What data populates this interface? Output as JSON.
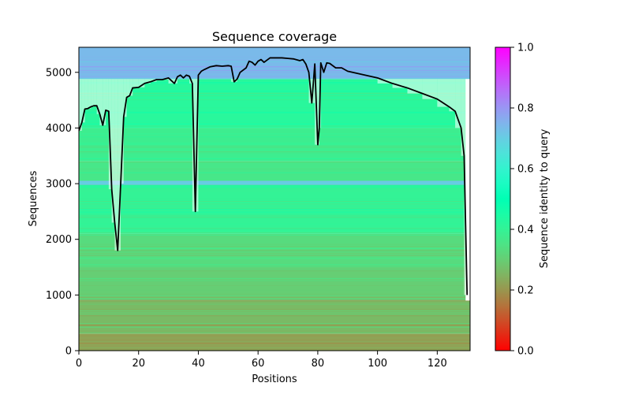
{
  "chart_data": {
    "type": "heatmap",
    "title": "Sequence coverage",
    "xlabel": "Positions",
    "ylabel": "Sequences",
    "xlim": [
      0,
      131
    ],
    "ylim": [
      0,
      5450
    ],
    "xticks": [
      0,
      20,
      40,
      60,
      80,
      100,
      120
    ],
    "yticks": [
      0,
      1000,
      2000,
      3000,
      4000,
      5000
    ],
    "colorbar": {
      "label": "Sequence identity to query",
      "ticks": [
        0.0,
        0.2,
        0.4,
        0.6,
        0.8,
        1.0
      ],
      "colormap": "rainbow_r",
      "range": [
        0.0,
        1.0
      ]
    },
    "identity_bands": [
      {
        "y0": 0,
        "y1": 300,
        "identity": 0.22
      },
      {
        "y0": 300,
        "y1": 900,
        "identity": 0.26
      },
      {
        "y0": 900,
        "y1": 1500,
        "identity": 0.3
      },
      {
        "y0": 1500,
        "y1": 2100,
        "identity": 0.33
      },
      {
        "y0": 2100,
        "y1": 2980,
        "identity": 0.4
      },
      {
        "y0": 2980,
        "y1": 3050,
        "identity": 0.72
      },
      {
        "y0": 3050,
        "y1": 3400,
        "identity": 0.36
      },
      {
        "y0": 3400,
        "y1": 4000,
        "identity": 0.38
      },
      {
        "y0": 4000,
        "y1": 4880,
        "identity": 0.42
      },
      {
        "y0": 4880,
        "y1": 5450,
        "identity": 0.74
      }
    ],
    "coverage_line": {
      "color": "#000000",
      "x": [
        0,
        1,
        2,
        3,
        4,
        5,
        6,
        7,
        8,
        9,
        10,
        11,
        12,
        13,
        14,
        15,
        16,
        17,
        18,
        20,
        22,
        24,
        26,
        28,
        30,
        32,
        33,
        34,
        35,
        36,
        37,
        38,
        39,
        40,
        41,
        42,
        44,
        46,
        48,
        50,
        51,
        52,
        53,
        54,
        56,
        57,
        58,
        59,
        60,
        61,
        62,
        64,
        66,
        68,
        70,
        72,
        74,
        75,
        76,
        77,
        78,
        79,
        80,
        80.5,
        81,
        82,
        83,
        84,
        86,
        88,
        90,
        95,
        100,
        105,
        110,
        115,
        120,
        124,
        126,
        128,
        129,
        130
      ],
      "y": [
        3950,
        4100,
        4340,
        4350,
        4380,
        4400,
        4400,
        4250,
        4050,
        4320,
        4300,
        2900,
        2300,
        1800,
        3000,
        4200,
        4550,
        4580,
        4720,
        4730,
        4800,
        4830,
        4870,
        4870,
        4900,
        4800,
        4920,
        4950,
        4900,
        4950,
        4930,
        4800,
        2500,
        4950,
        5020,
        5050,
        5100,
        5120,
        5110,
        5120,
        5110,
        4830,
        4880,
        5000,
        5080,
        5200,
        5180,
        5130,
        5200,
        5230,
        5180,
        5260,
        5260,
        5260,
        5250,
        5240,
        5210,
        5230,
        5150,
        5000,
        4450,
        5150,
        3700,
        4000,
        5170,
        5000,
        5170,
        5160,
        5080,
        5080,
        5020,
        4960,
        4900,
        4800,
        4720,
        4620,
        4520,
        4380,
        4300,
        4000,
        3500,
        1000
      ]
    }
  }
}
